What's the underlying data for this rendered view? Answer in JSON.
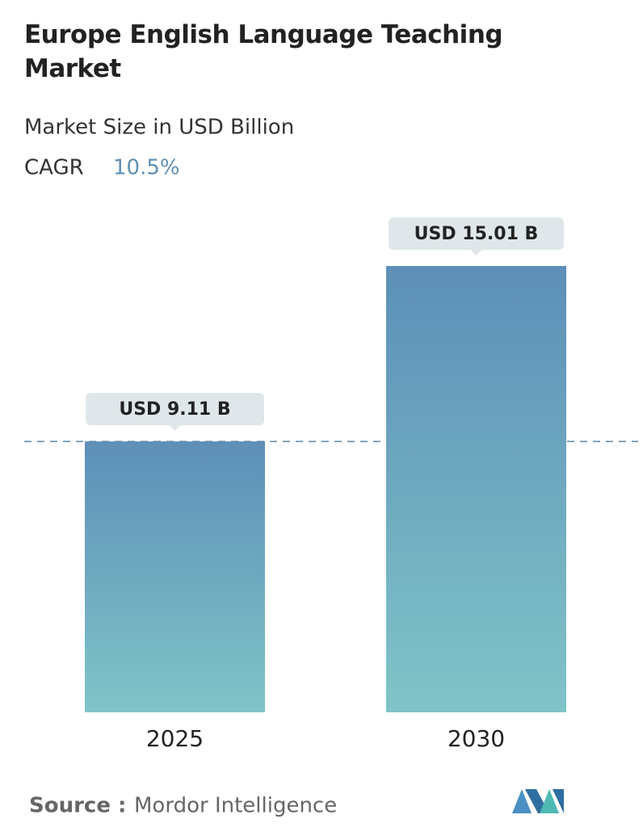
{
  "chart_data": {
    "type": "bar",
    "title": "Europe English Language Teaching Market",
    "subtitle": "Market Size in USD Billion",
    "cagr_label": "CAGR",
    "cagr_value": "10.5%",
    "categories": [
      "2025",
      "2030"
    ],
    "values": [
      9.11,
      15.01
    ],
    "value_labels": [
      "USD 9.11 B",
      "USD 15.01 B"
    ],
    "gradient": [
      "#5d8fb8",
      "#80c4c8"
    ],
    "reference_line": true,
    "source_label": "Source :",
    "source": "Mordor Intelligence"
  }
}
